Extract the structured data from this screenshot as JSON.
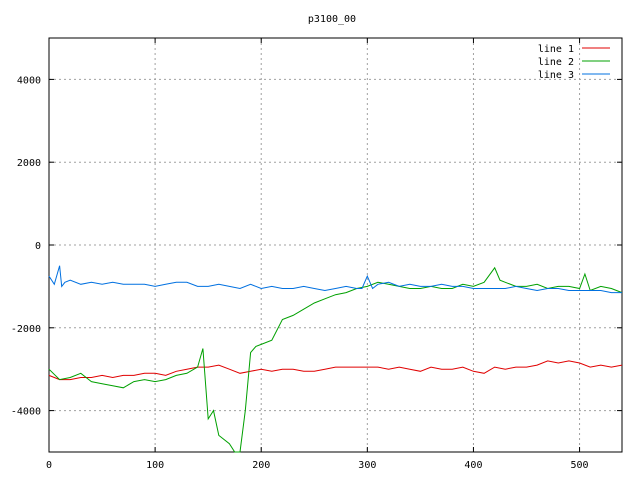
{
  "chart_data": {
    "type": "line",
    "title": "p3100_00",
    "xlabel": "",
    "ylabel": "",
    "xlim": [
      0,
      540
    ],
    "ylim": [
      -5000,
      5000
    ],
    "xticks": [
      0,
      100,
      200,
      300,
      400,
      500
    ],
    "yticks": [
      -4000,
      -2000,
      0,
      2000,
      4000
    ],
    "grid": true,
    "legend_position": "top-right",
    "series": [
      {
        "name": "line 1",
        "color": "#e00000",
        "x": [
          0,
          10,
          20,
          30,
          40,
          50,
          60,
          70,
          80,
          90,
          100,
          110,
          120,
          130,
          140,
          150,
          160,
          170,
          180,
          190,
          200,
          210,
          220,
          230,
          240,
          250,
          260,
          270,
          280,
          290,
          300,
          310,
          320,
          330,
          340,
          350,
          360,
          370,
          380,
          390,
          400,
          410,
          420,
          430,
          440,
          450,
          460,
          470,
          480,
          490,
          500,
          510,
          520,
          530,
          540
        ],
        "y": [
          -3150,
          -3250,
          -3250,
          -3200,
          -3200,
          -3150,
          -3200,
          -3150,
          -3150,
          -3100,
          -3100,
          -3150,
          -3050,
          -3000,
          -2950,
          -2950,
          -2900,
          -3000,
          -3100,
          -3050,
          -3000,
          -3050,
          -3000,
          -3000,
          -3050,
          -3050,
          -3000,
          -2950,
          -2950,
          -2950,
          -2950,
          -2950,
          -3000,
          -2950,
          -3000,
          -3050,
          -2950,
          -3000,
          -3000,
          -2950,
          -3050,
          -3100,
          -2950,
          -3000,
          -2950,
          -2950,
          -2900,
          -2800,
          -2850,
          -2800,
          -2850,
          -2950,
          -2900,
          -2950,
          -2900
        ]
      },
      {
        "name": "line 2",
        "color": "#00a000",
        "x": [
          0,
          10,
          20,
          30,
          40,
          50,
          60,
          70,
          80,
          90,
          100,
          110,
          120,
          130,
          140,
          145,
          150,
          155,
          160,
          170,
          175,
          180,
          185,
          190,
          195,
          200,
          210,
          220,
          230,
          240,
          250,
          260,
          270,
          280,
          290,
          300,
          310,
          320,
          330,
          340,
          350,
          360,
          370,
          380,
          390,
          400,
          410,
          420,
          425,
          430,
          440,
          450,
          460,
          470,
          480,
          490,
          500,
          505,
          510,
          520,
          530,
          540
        ],
        "y": [
          -3000,
          -3250,
          -3200,
          -3100,
          -3300,
          -3350,
          -3400,
          -3450,
          -3300,
          -3250,
          -3300,
          -3250,
          -3150,
          -3100,
          -2950,
          -2500,
          -4200,
          -4000,
          -4600,
          -4800,
          -5000,
          -5000,
          -4000,
          -2600,
          -2450,
          -2400,
          -2300,
          -1800,
          -1700,
          -1550,
          -1400,
          -1300,
          -1200,
          -1150,
          -1050,
          -1000,
          -900,
          -950,
          -1000,
          -1050,
          -1050,
          -1000,
          -1050,
          -1050,
          -950,
          -1000,
          -900,
          -550,
          -850,
          -900,
          -1000,
          -1000,
          -950,
          -1050,
          -1000,
          -1000,
          -1050,
          -700,
          -1100,
          -1000,
          -1050,
          -1150
        ]
      },
      {
        "name": "line 3",
        "color": "#0070e0",
        "x": [
          0,
          5,
          10,
          12,
          15,
          20,
          30,
          40,
          50,
          60,
          70,
          80,
          90,
          100,
          110,
          120,
          130,
          140,
          150,
          160,
          170,
          180,
          190,
          200,
          210,
          220,
          230,
          240,
          250,
          260,
          270,
          280,
          290,
          295,
          300,
          305,
          310,
          320,
          330,
          340,
          350,
          360,
          370,
          380,
          390,
          400,
          410,
          420,
          430,
          440,
          450,
          460,
          470,
          480,
          490,
          500,
          510,
          520,
          530,
          540
        ],
        "y": [
          -750,
          -950,
          -500,
          -1000,
          -900,
          -850,
          -950,
          -900,
          -950,
          -900,
          -950,
          -950,
          -950,
          -1000,
          -950,
          -900,
          -900,
          -1000,
          -1000,
          -950,
          -1000,
          -1050,
          -950,
          -1050,
          -1000,
          -1050,
          -1050,
          -1000,
          -1050,
          -1100,
          -1050,
          -1000,
          -1050,
          -1050,
          -750,
          -1050,
          -950,
          -900,
          -1000,
          -950,
          -1000,
          -1000,
          -950,
          -1000,
          -1000,
          -1050,
          -1050,
          -1050,
          -1050,
          -1000,
          -1050,
          -1100,
          -1050,
          -1050,
          -1100,
          -1100,
          -1100,
          -1100,
          -1150,
          -1150
        ]
      }
    ]
  }
}
